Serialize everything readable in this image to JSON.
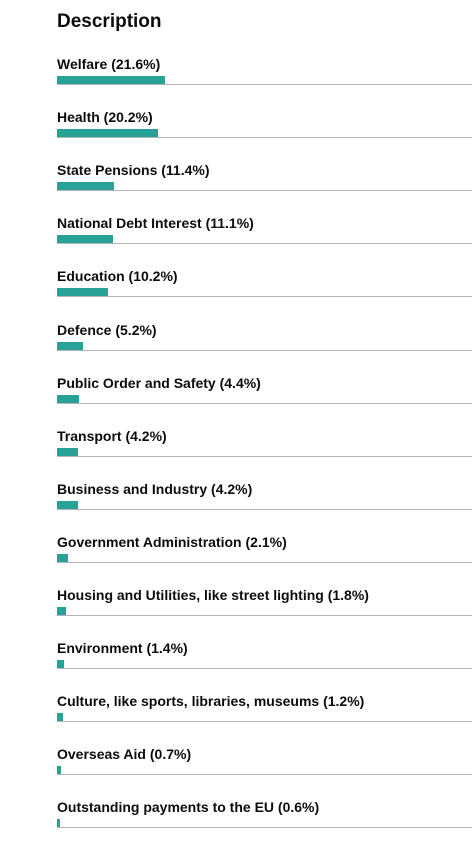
{
  "heading": "Description",
  "colors": {
    "bar": "#28a197",
    "rule": "#b1b4b6",
    "text": "#0b0c0c"
  },
  "chart_data": {
    "type": "bar",
    "orientation": "horizontal",
    "unit": "%",
    "categories": [
      "Welfare",
      "Health",
      "State Pensions",
      "National Debt Interest",
      "Education",
      "Defence",
      "Public Order and Safety",
      "Transport",
      "Business and Industry",
      "Government Administration",
      "Housing and Utilities, like street lighting",
      "Environment",
      "Culture, like sports, libraries, museums",
      "Overseas Aid",
      "Outstanding payments to the EU"
    ],
    "values": [
      21.6,
      20.2,
      11.4,
      11.1,
      10.2,
      5.2,
      4.4,
      4.2,
      4.2,
      2.1,
      1.8,
      1.4,
      1.2,
      0.7,
      0.6
    ],
    "labels": [
      "Welfare (21.6%)",
      "Health (20.2%)",
      "State Pensions (11.4%)",
      "National Debt Interest (11.1%)",
      "Education (10.2%)",
      "Defence (5.2%)",
      "Public Order and Safety (4.4%)",
      "Transport (4.2%)",
      "Business and Industry (4.2%)",
      "Government Administration (2.1%)",
      "Housing and Utilities, like street lighting (1.8%)",
      "Environment (1.4%)",
      "Culture, like sports, libraries, museums (1.2%)",
      "Overseas Aid (0.7%)",
      "Outstanding payments to the EU (0.6%)"
    ]
  }
}
